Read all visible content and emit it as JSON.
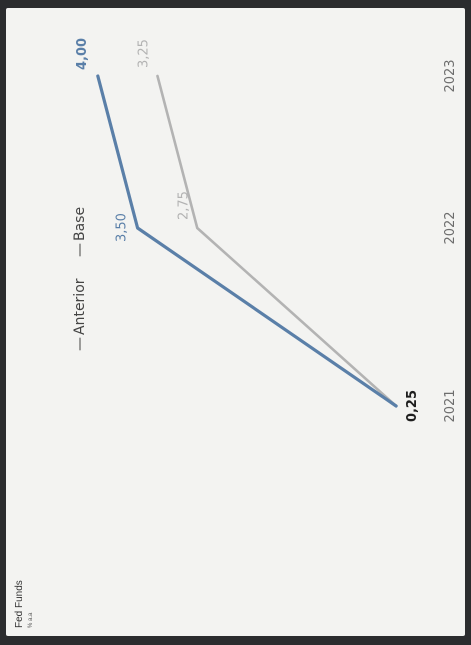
{
  "chart_data": {
    "type": "line",
    "title": "Fed Funds",
    "subtitle": "% a.a",
    "x": [
      "2021",
      "2022",
      "2023"
    ],
    "ylim": [
      0,
      4.4
    ],
    "series": [
      {
        "name": "Anterior",
        "color": "#b3b3b3",
        "values": [
          0.25,
          2.75,
          3.25
        ],
        "labels": [
          "",
          "2,75",
          "3,25"
        ]
      },
      {
        "name": "Base",
        "color": "#5a7fa8",
        "values": [
          0.25,
          3.5,
          4.0
        ],
        "labels": [
          "0,25",
          "3,50",
          "4,00"
        ]
      }
    ],
    "legend": {
      "placement": "top",
      "prefix": "—"
    },
    "grid": false
  }
}
